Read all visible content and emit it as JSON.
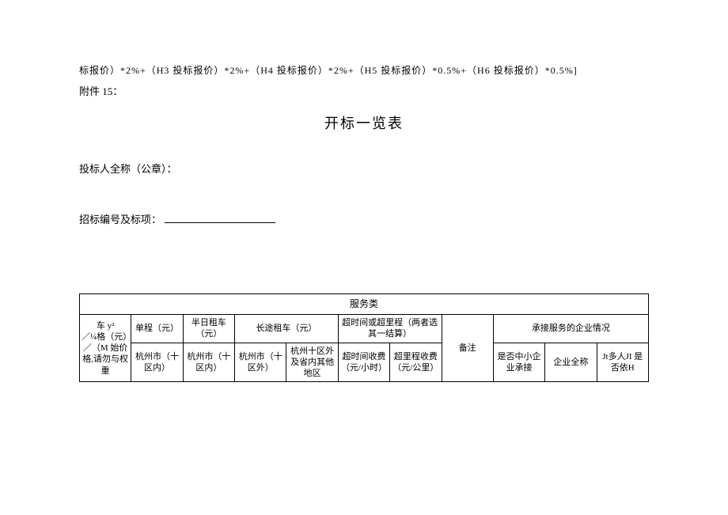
{
  "formula": "标报价）*2%+（H3 投标报价）*2%+（H4 投标报价）*2%+（H5 投标报价）*0.5%+（H6 投标报价）*0.5%]",
  "attachment": "附件 15：",
  "title": "开标一览表",
  "bidder_label": "投标人全称（公章）：",
  "bid_number_label": "招标编号及标项：",
  "table": {
    "category": "服务类",
    "vehicle_label_l1": "车 y²",
    "vehicle_label_l2": "／¼格（元）",
    "vehicle_label_l3": "／（M 始价格,请勿与权重",
    "headers": {
      "single": "单程（元）",
      "halfday": "半日租车（元）",
      "longdist": "长途租车（元）",
      "overtime": "超时间或超里程（两者选其一结算）",
      "remark": "备注",
      "enterprise": "承接服务的企业情况"
    },
    "sub": {
      "hz_in": "杭州市（十区内）",
      "hz_in2": "杭州市（十区内）",
      "hz_out": "杭州市（十区外）",
      "hz_other": "杭州十区外及省内其他地区",
      "overtime_fee": "超时间收费（元/小时）",
      "overkm_fee": "超里程收费（元/公里）",
      "sme": "是否中小企业承接",
      "ent_name": "企业全称",
      "other": "Jt多人JI 是否依H"
    }
  }
}
